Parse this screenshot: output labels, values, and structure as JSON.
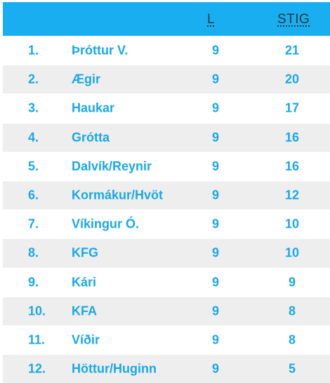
{
  "table": {
    "header": {
      "played_label": "L",
      "points_label": "STIG"
    },
    "rows": [
      {
        "rank": "1.",
        "team": "Þróttur V.",
        "played": "9",
        "points": "21"
      },
      {
        "rank": "2.",
        "team": "Ægir",
        "played": "9",
        "points": "20"
      },
      {
        "rank": "3.",
        "team": "Haukar",
        "played": "9",
        "points": "17"
      },
      {
        "rank": "4.",
        "team": "Grótta",
        "played": "9",
        "points": "16"
      },
      {
        "rank": "5.",
        "team": "Dalvík/Reynir",
        "played": "9",
        "points": "16"
      },
      {
        "rank": "6.",
        "team": "Kormákur/Hvöt",
        "played": "9",
        "points": "12"
      },
      {
        "rank": "7.",
        "team": "Víkingur Ó.",
        "played": "9",
        "points": "10"
      },
      {
        "rank": "8.",
        "team": "KFG",
        "played": "9",
        "points": "10"
      },
      {
        "rank": "9.",
        "team": "Kári",
        "played": "9",
        "points": "9"
      },
      {
        "rank": "10.",
        "team": "KFA",
        "played": "9",
        "points": "8"
      },
      {
        "rank": "11.",
        "team": "Víðir",
        "played": "9",
        "points": "8"
      },
      {
        "rank": "12.",
        "team": "Höttur/Huginn",
        "played": "9",
        "points": "5"
      }
    ]
  },
  "colors": {
    "header_background": "#19aef0",
    "header_text": "#2a3a44",
    "row_text": "#1ba8e6",
    "row_alt_background": "#eeeeee"
  }
}
